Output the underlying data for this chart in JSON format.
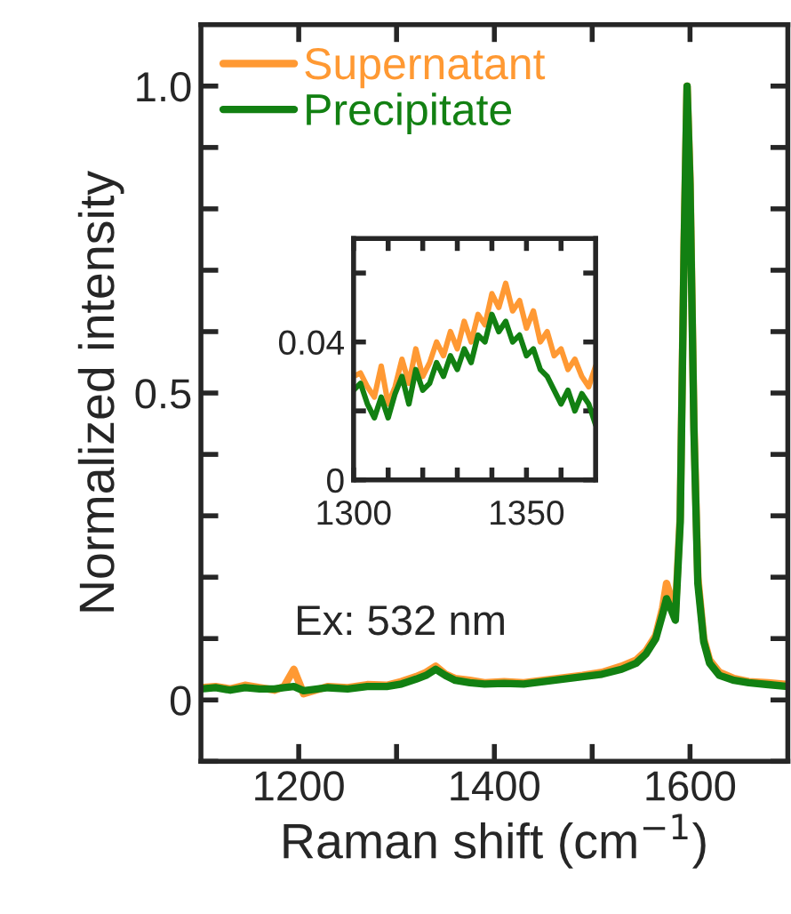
{
  "chart_data": [
    {
      "type": "line",
      "xlabel": "Raman shift (cm$^{−1}$)",
      "ylabel": "Normalized intensity",
      "xlim": [
        1100,
        1700
      ],
      "ylim": [
        -0.1,
        1.1
      ],
      "xticks": [
        1200,
        {
          "value": 1300,
          "label": null
        },
        1400,
        {
          "value": 1500,
          "label": null
        },
        1600
      ],
      "yticks": [
        {
          "value": -0.1,
          "label": null
        },
        0,
        {
          "value": 0.1,
          "label": null
        },
        {
          "value": 0.2,
          "label": null
        },
        {
          "value": 0.3,
          "label": null
        },
        {
          "value": 0.4,
          "label": null
        },
        0.5,
        {
          "value": 0.6,
          "label": null
        },
        {
          "value": 0.7,
          "label": null
        },
        {
          "value": 0.8,
          "label": null
        },
        {
          "value": 0.9,
          "label": null
        },
        {
          "value": 1.0,
          "label": "1.0"
        }
      ],
      "legend": "top left",
      "grid": false,
      "annotations": [
        "Ex: 532 nm"
      ],
      "x": [
        1100,
        1115,
        1130,
        1145,
        1160,
        1175,
        1185,
        1195,
        1205,
        1230,
        1250,
        1270,
        1290,
        1305,
        1320,
        1330,
        1340,
        1350,
        1360,
        1375,
        1390,
        1410,
        1430,
        1450,
        1470,
        1490,
        1510,
        1530,
        1545,
        1555,
        1565,
        1572,
        1576,
        1580,
        1585,
        1590,
        1594,
        1597,
        1600,
        1604,
        1608,
        1614,
        1620,
        1630,
        1645,
        1660,
        1680,
        1700
      ],
      "series": [
        {
          "name": "Supernatant",
          "color": "#ff9933",
          "values": [
            0.02,
            0.022,
            0.018,
            0.024,
            0.02,
            0.016,
            0.022,
            0.05,
            0.01,
            0.022,
            0.02,
            0.025,
            0.024,
            0.03,
            0.038,
            0.045,
            0.055,
            0.042,
            0.035,
            0.032,
            0.028,
            0.03,
            0.028,
            0.032,
            0.036,
            0.04,
            0.045,
            0.055,
            0.065,
            0.08,
            0.105,
            0.15,
            0.19,
            0.17,
            0.14,
            0.3,
            0.75,
            1.0,
            0.85,
            0.45,
            0.2,
            0.1,
            0.065,
            0.045,
            0.035,
            0.03,
            0.028,
            0.025
          ]
        },
        {
          "name": "Precipitate",
          "color": "#128012",
          "values": [
            0.018,
            0.02,
            0.016,
            0.02,
            0.018,
            0.018,
            0.02,
            0.022,
            0.015,
            0.02,
            0.018,
            0.022,
            0.022,
            0.026,
            0.034,
            0.04,
            0.05,
            0.04,
            0.032,
            0.028,
            0.026,
            0.027,
            0.026,
            0.03,
            0.034,
            0.038,
            0.042,
            0.05,
            0.06,
            0.075,
            0.1,
            0.14,
            0.165,
            0.15,
            0.13,
            0.29,
            0.74,
            1.0,
            0.84,
            0.44,
            0.19,
            0.095,
            0.06,
            0.04,
            0.032,
            0.028,
            0.025,
            0.022
          ]
        }
      ]
    },
    {
      "type": "line",
      "xlim": [
        1300,
        1370
      ],
      "ylim": [
        0,
        0.07
      ],
      "xticks": [
        1300,
        {
          "value": 1310,
          "label": null
        },
        {
          "value": 1320,
          "label": null
        },
        {
          "value": 1330,
          "label": null
        },
        {
          "value": 1340,
          "label": null
        },
        1350,
        {
          "value": 1360,
          "label": null
        }
      ],
      "yticks": [
        0,
        {
          "value": 0.02,
          "label": null
        },
        0.04,
        {
          "value": 0.06,
          "label": null
        }
      ],
      "grid": false,
      "x": [
        1300,
        1302,
        1304,
        1306,
        1308,
        1310,
        1312,
        1314,
        1316,
        1318,
        1320,
        1322,
        1324,
        1326,
        1328,
        1330,
        1332,
        1334,
        1336,
        1338,
        1340,
        1342,
        1344,
        1346,
        1348,
        1350,
        1352,
        1354,
        1356,
        1358,
        1360,
        1362,
        1364,
        1366,
        1368,
        1370
      ],
      "series": [
        {
          "color": "#ff9933",
          "values": [
            0.03,
            0.031,
            0.027,
            0.024,
            0.033,
            0.022,
            0.027,
            0.035,
            0.028,
            0.038,
            0.03,
            0.034,
            0.04,
            0.036,
            0.043,
            0.038,
            0.046,
            0.04,
            0.048,
            0.045,
            0.054,
            0.05,
            0.057,
            0.049,
            0.052,
            0.044,
            0.049,
            0.04,
            0.043,
            0.036,
            0.038,
            0.032,
            0.035,
            0.03,
            0.027,
            0.033
          ]
        },
        {
          "color": "#128012",
          "values": [
            0.026,
            0.028,
            0.022,
            0.018,
            0.024,
            0.018,
            0.025,
            0.03,
            0.022,
            0.032,
            0.026,
            0.028,
            0.034,
            0.03,
            0.036,
            0.032,
            0.038,
            0.034,
            0.042,
            0.04,
            0.048,
            0.043,
            0.046,
            0.04,
            0.042,
            0.036,
            0.038,
            0.032,
            0.03,
            0.026,
            0.022,
            0.026,
            0.02,
            0.025,
            0.022,
            0.016
          ]
        }
      ]
    }
  ]
}
